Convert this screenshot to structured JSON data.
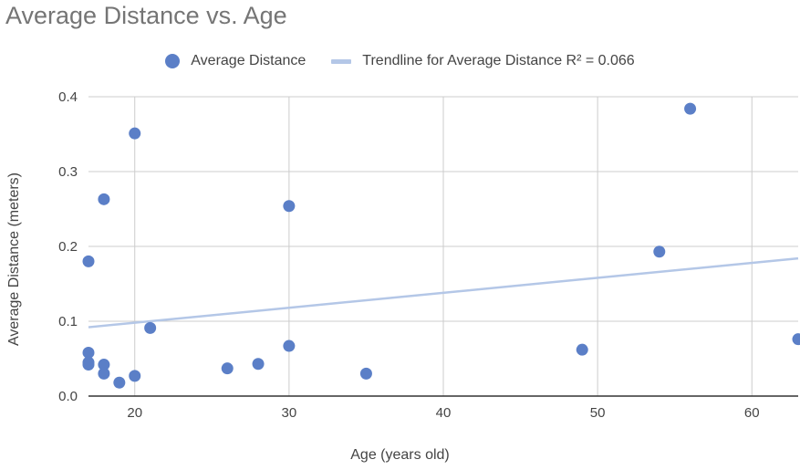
{
  "chart_data": {
    "type": "scatter",
    "title": "Average Distance vs. Age",
    "xlabel": "Age (years old)",
    "ylabel": "Average Distance (meters)",
    "xlim": [
      17,
      63
    ],
    "ylim": [
      0,
      0.4
    ],
    "x_ticks": [
      20,
      30,
      40,
      50,
      60
    ],
    "x_tick_labels": [
      "20",
      "30",
      "40",
      "50",
      "60"
    ],
    "y_ticks": [
      0,
      0.1,
      0.2,
      0.3,
      0.4
    ],
    "y_tick_labels": [
      "0.0",
      "0.1",
      "0.2",
      "0.3",
      "0.4"
    ],
    "grid": true,
    "legend_position": "top-center",
    "series": [
      {
        "name": "Average Distance",
        "color": "#5b7fc7",
        "points": [
          {
            "x": 17,
            "y": 0.18
          },
          {
            "x": 17,
            "y": 0.058
          },
          {
            "x": 17,
            "y": 0.045
          },
          {
            "x": 17,
            "y": 0.042
          },
          {
            "x": 18,
            "y": 0.263
          },
          {
            "x": 18,
            "y": 0.042
          },
          {
            "x": 18,
            "y": 0.03
          },
          {
            "x": 19,
            "y": 0.018
          },
          {
            "x": 20,
            "y": 0.351
          },
          {
            "x": 20,
            "y": 0.027
          },
          {
            "x": 21,
            "y": 0.091
          },
          {
            "x": 26,
            "y": 0.037
          },
          {
            "x": 28,
            "y": 0.043
          },
          {
            "x": 30,
            "y": 0.254
          },
          {
            "x": 30,
            "y": 0.067
          },
          {
            "x": 35,
            "y": 0.03
          },
          {
            "x": 49,
            "y": 0.062
          },
          {
            "x": 54,
            "y": 0.193
          },
          {
            "x": 56,
            "y": 0.384
          },
          {
            "x": 63,
            "y": 0.076
          }
        ]
      }
    ],
    "trendline": {
      "name": "Trendline for Average Distance R² = 0.066",
      "color": "#b4c7e7",
      "points": [
        {
          "x": 17,
          "y": 0.092
        },
        {
          "x": 63,
          "y": 0.184
        }
      ]
    }
  }
}
